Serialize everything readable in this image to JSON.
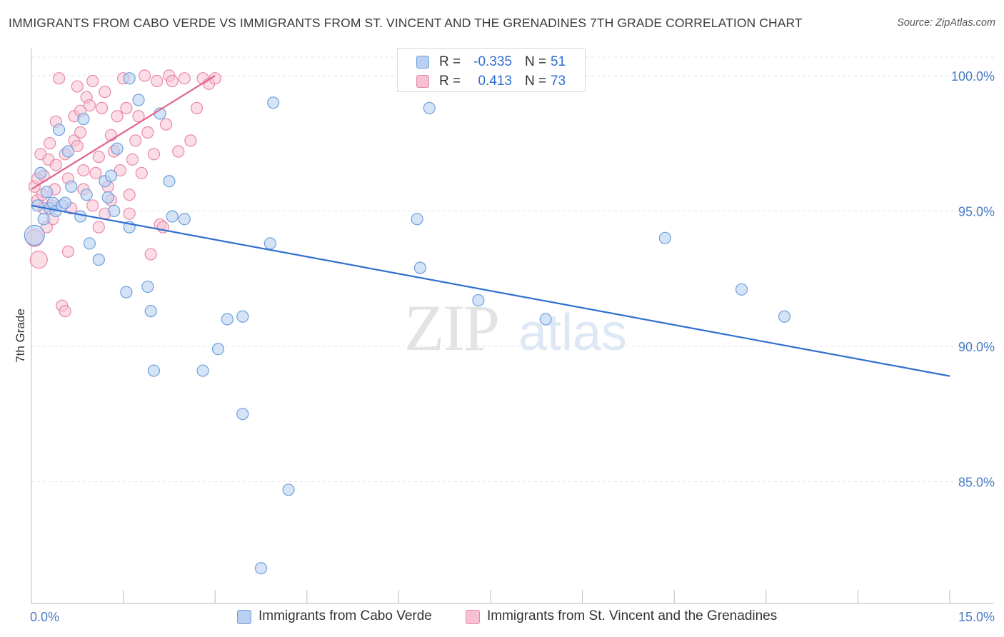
{
  "title": "IMMIGRANTS FROM CABO VERDE VS IMMIGRANTS FROM ST. VINCENT AND THE GRENADINES 7TH GRADE CORRELATION CHART",
  "source": "Source: ZipAtlas.com",
  "watermark": {
    "zip": "ZIP",
    "atlas": "atlas"
  },
  "legend": {
    "r_label": "R =",
    "n_label": "N =",
    "rows": [
      {
        "r": "-0.335",
        "n": "51"
      },
      {
        "r": "0.413",
        "n": "73"
      }
    ]
  },
  "chart_data": {
    "type": "scatter",
    "title": "IMMIGRANTS FROM CABO VERDE VS IMMIGRANTS FROM ST. VINCENT AND THE GRENADINES 7TH GRADE CORRELATION CHART",
    "xlabel": "",
    "ylabel": "7th Grade",
    "xlim": [
      0,
      15
    ],
    "ylim": [
      80.5,
      101
    ],
    "x_tick_labels": [
      "0.0%",
      "15.0%"
    ],
    "y_ticks": [
      85,
      90,
      95,
      100
    ],
    "y_tick_labels": [
      "85.0%",
      "90.0%",
      "95.0%",
      "100.0%"
    ],
    "grid": true,
    "legend_position": "top-center",
    "colors": {
      "cabo_fill": "#b9d0f2",
      "cabo_stroke": "#6f9fdc",
      "cabo_line": "#2f6fd0",
      "svg_fill": "#f7c1d2",
      "svg_stroke": "#e88aa8",
      "svg_line": "#e0628f",
      "tick_text": "#4a7cc4"
    },
    "series": [
      {
        "name": "Immigrants from Cabo Verde",
        "r": -0.335,
        "n": 51,
        "trend": {
          "x": [
            0,
            15
          ],
          "y": [
            95.2,
            88.9
          ]
        },
        "points": [
          [
            0.05,
            94.1
          ],
          [
            0.1,
            95.2
          ],
          [
            0.15,
            96.4
          ],
          [
            0.2,
            94.7
          ],
          [
            0.25,
            95.7
          ],
          [
            0.3,
            95.1
          ],
          [
            0.35,
            95.3
          ],
          [
            0.4,
            95.0
          ],
          [
            0.45,
            98.0
          ],
          [
            0.5,
            95.2
          ],
          [
            0.55,
            95.3
          ],
          [
            0.6,
            97.2
          ],
          [
            0.65,
            95.9
          ],
          [
            0.8,
            94.8
          ],
          [
            0.85,
            98.4
          ],
          [
            0.9,
            95.6
          ],
          [
            0.95,
            93.8
          ],
          [
            1.1,
            93.2
          ],
          [
            1.2,
            96.1
          ],
          [
            1.25,
            95.5
          ],
          [
            1.3,
            96.3
          ],
          [
            1.35,
            95.0
          ],
          [
            1.4,
            97.3
          ],
          [
            1.55,
            92.0
          ],
          [
            1.6,
            94.4
          ],
          [
            1.6,
            99.9
          ],
          [
            1.75,
            99.1
          ],
          [
            1.9,
            92.2
          ],
          [
            1.95,
            91.3
          ],
          [
            2.0,
            89.1
          ],
          [
            2.1,
            98.6
          ],
          [
            2.25,
            96.1
          ],
          [
            2.3,
            94.8
          ],
          [
            2.5,
            94.7
          ],
          [
            2.8,
            89.1
          ],
          [
            3.05,
            89.9
          ],
          [
            3.2,
            91.0
          ],
          [
            3.45,
            91.1
          ],
          [
            3.45,
            87.5
          ],
          [
            3.75,
            81.8
          ],
          [
            3.9,
            93.8
          ],
          [
            3.95,
            99.0
          ],
          [
            4.2,
            84.7
          ],
          [
            6.3,
            94.7
          ],
          [
            6.35,
            92.9
          ],
          [
            6.5,
            98.8
          ],
          [
            7.3,
            91.7
          ],
          [
            8.4,
            91.0
          ],
          [
            10.35,
            94.0
          ],
          [
            11.6,
            92.1
          ],
          [
            12.3,
            91.1
          ]
        ]
      },
      {
        "name": "Immigrants from St. Vincent and the Grenadines",
        "r": 0.413,
        "n": 73,
        "trend": {
          "x": [
            0,
            3.0
          ],
          "y": [
            95.8,
            100.0
          ]
        },
        "points": [
          [
            0.05,
            94.0
          ],
          [
            0.05,
            95.9
          ],
          [
            0.1,
            96.2
          ],
          [
            0.1,
            95.4
          ],
          [
            0.12,
            93.2
          ],
          [
            0.15,
            97.1
          ],
          [
            0.18,
            95.6
          ],
          [
            0.2,
            96.3
          ],
          [
            0.25,
            94.4
          ],
          [
            0.28,
            96.9
          ],
          [
            0.3,
            97.5
          ],
          [
            0.32,
            95.2
          ],
          [
            0.35,
            94.7
          ],
          [
            0.38,
            95.8
          ],
          [
            0.4,
            98.3
          ],
          [
            0.4,
            96.7
          ],
          [
            0.45,
            99.9
          ],
          [
            0.5,
            91.5
          ],
          [
            0.55,
            91.3
          ],
          [
            0.55,
            97.1
          ],
          [
            0.6,
            96.2
          ],
          [
            0.6,
            93.5
          ],
          [
            0.65,
            95.1
          ],
          [
            0.7,
            97.6
          ],
          [
            0.7,
            98.5
          ],
          [
            0.75,
            99.6
          ],
          [
            0.75,
            97.4
          ],
          [
            0.8,
            97.9
          ],
          [
            0.8,
            98.7
          ],
          [
            0.85,
            95.8
          ],
          [
            0.85,
            96.5
          ],
          [
            0.9,
            99.2
          ],
          [
            0.95,
            98.9
          ],
          [
            1.0,
            95.2
          ],
          [
            1.0,
            99.8
          ],
          [
            1.05,
            96.4
          ],
          [
            1.1,
            94.4
          ],
          [
            1.1,
            97.0
          ],
          [
            1.15,
            98.8
          ],
          [
            1.2,
            99.4
          ],
          [
            1.25,
            95.9
          ],
          [
            1.3,
            97.8
          ],
          [
            1.3,
            95.4
          ],
          [
            1.35,
            97.2
          ],
          [
            1.4,
            98.5
          ],
          [
            1.45,
            96.5
          ],
          [
            1.5,
            99.9
          ],
          [
            1.55,
            98.8
          ],
          [
            1.6,
            95.6
          ],
          [
            1.6,
            94.9
          ],
          [
            1.65,
            96.9
          ],
          [
            1.7,
            97.6
          ],
          [
            1.75,
            98.5
          ],
          [
            1.8,
            96.4
          ],
          [
            1.85,
            100.0
          ],
          [
            1.9,
            97.9
          ],
          [
            1.95,
            93.4
          ],
          [
            2.0,
            97.1
          ],
          [
            2.05,
            99.8
          ],
          [
            2.1,
            94.5
          ],
          [
            2.15,
            94.4
          ],
          [
            2.2,
            98.2
          ],
          [
            2.25,
            100.0
          ],
          [
            2.3,
            99.8
          ],
          [
            2.4,
            97.2
          ],
          [
            2.5,
            99.9
          ],
          [
            2.7,
            98.8
          ],
          [
            2.8,
            99.9
          ],
          [
            2.9,
            99.7
          ],
          [
            3.0,
            99.9
          ],
          [
            2.6,
            97.6
          ],
          [
            1.2,
            94.9
          ],
          [
            0.2,
            95.1
          ]
        ]
      }
    ]
  }
}
